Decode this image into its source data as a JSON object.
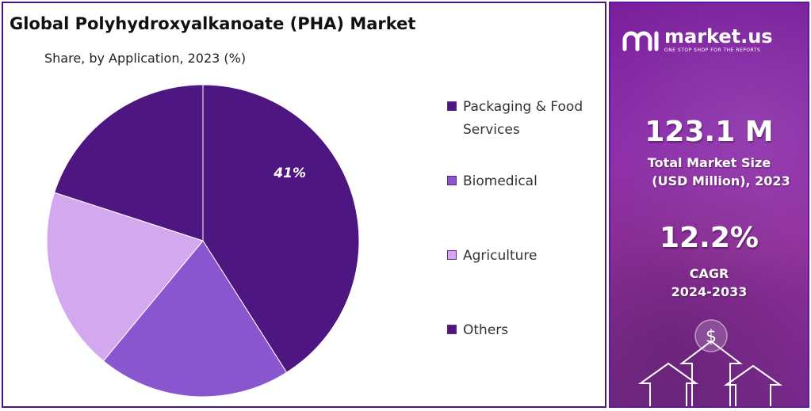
{
  "chart_data": {
    "type": "pie",
    "title": "Global Polyhydroxyalkanoate (PHA) Market",
    "subtitle": "Share, by Application, 2023 (%)",
    "slices": [
      {
        "label": "Packaging & Food Services",
        "value": 41,
        "color": "#4e1681",
        "data_label": "41%"
      },
      {
        "label": "Biomedical",
        "value": 20,
        "color": "#8a56cf",
        "data_label": ""
      },
      {
        "label": "Agriculture",
        "value": 19,
        "color": "#d3a8ef",
        "data_label": ""
      },
      {
        "label": "Others",
        "value": 20,
        "color": "#4e1681",
        "data_label": ""
      }
    ],
    "legend_position": "right"
  },
  "brand": {
    "name": "market.us",
    "tagline": "ONE STOP SHOP FOR THE REPORTS"
  },
  "stats": {
    "market_size_value": "123.1 M",
    "market_size_label_line1": "Total Market Size",
    "market_size_label_line2": "(USD Million), 2023",
    "cagr_value": "12.2%",
    "cagr_label_line1": "CAGR",
    "cagr_label_line2": "2024-2033"
  },
  "decor": {
    "currency_symbol": "$"
  }
}
